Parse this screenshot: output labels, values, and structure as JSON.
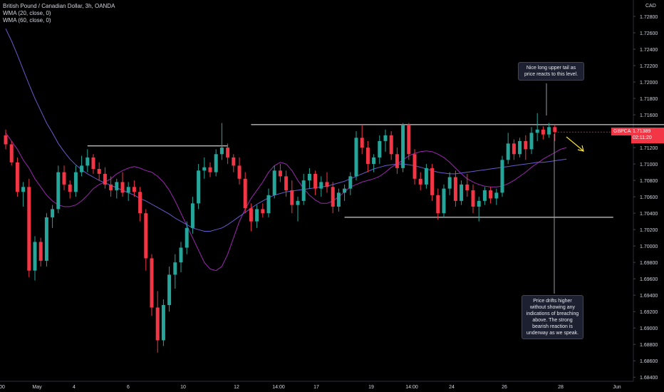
{
  "header": {
    "symbol_title": "British Pound / Canadian Dollar, 3h, OANDA",
    "indicator_1": "WMA (20, close, 0)",
    "indicator_2": "WMA (60, close, 0)"
  },
  "price_axis": {
    "currency": "CAD",
    "symbol_label": "GBPCAD",
    "current_price": "1.71389",
    "countdown": "02:11:20"
  },
  "annotations": {
    "top_note": "Nice long upper tail as price reacts to this level.",
    "bottom_note": "Price drifts higher without showing any indications of breaching above. The strong bearish reaction is underway as we speak."
  },
  "colors": {
    "background": "#000000",
    "bull": "#26a69a",
    "bear": "#f23645",
    "wma20": "#9c27b0",
    "wma60": "#6a5acd",
    "level_line": "#ffffff",
    "arrow": "#f7e03a"
  },
  "chart_data": {
    "type": "candlestick",
    "title": "British Pound / Canadian Dollar, 3h, OANDA",
    "y_ticks": [
      "1.72800",
      "1.72600",
      "1.72400",
      "1.72200",
      "1.72000",
      "1.71800",
      "1.71600",
      "1.71400",
      "1.71200",
      "1.71000",
      "1.70800",
      "1.70600",
      "1.70400",
      "1.70200",
      "1.70000",
      "1.69800",
      "1.69600",
      "1.69400",
      "1.69200",
      "1.69000",
      "1.68800",
      "1.68600",
      "1.68400"
    ],
    "x_ticks": [
      "00",
      "May",
      "4",
      "6",
      "10",
      "12",
      "14:00",
      "17",
      "19",
      "14:00",
      "24",
      "26",
      "28",
      "Jun"
    ],
    "ylim": [
      1.6835,
      1.73
    ],
    "horizontal_levels": [
      {
        "price": 1.7122,
        "from": 14,
        "to": 38
      },
      {
        "price": 1.7148,
        "from": 42,
        "to": 125
      },
      {
        "price": 1.7035,
        "from": 58,
        "to": 104
      }
    ],
    "series": [
      {
        "name": "WMA (20, close, 0)",
        "values": [
          1.7138,
          1.7128,
          1.7118,
          1.7105,
          1.7095,
          1.7082,
          1.7072,
          1.7062,
          1.7055,
          1.705,
          1.7048,
          1.7048,
          1.705,
          1.7055,
          1.7062,
          1.707,
          1.7075,
          1.7078,
          1.7082,
          1.7088,
          1.7092,
          1.7095,
          1.7097,
          1.7095,
          1.7092,
          1.709,
          1.7085,
          1.7078,
          1.7068,
          1.7055,
          1.704,
          1.7025,
          1.701,
          1.6995,
          1.698,
          1.6972,
          1.697,
          1.6975,
          1.699,
          1.701,
          1.703,
          1.7045,
          1.7058,
          1.7068,
          1.7078,
          1.709,
          1.7098,
          1.7102,
          1.71,
          1.7092,
          1.708,
          1.707,
          1.7062,
          1.7056,
          1.7052,
          1.7052,
          1.7055,
          1.706,
          1.7066,
          1.7072,
          1.7075,
          1.7078,
          1.708,
          1.7082,
          1.7085,
          1.709,
          1.7096,
          1.71,
          1.7105,
          1.711,
          1.7113,
          1.7115,
          1.7116,
          1.7115,
          1.7112,
          1.7108,
          1.7102,
          1.7095,
          1.7088,
          1.7082,
          1.7078,
          1.7075,
          1.7073,
          1.7072,
          1.7072,
          1.7073,
          1.7076,
          1.708,
          1.7085,
          1.709,
          1.7096,
          1.7101,
          1.7106,
          1.711,
          1.7114,
          1.7118,
          1.712
        ]
      },
      {
        "name": "WMA (60, close, 0)",
        "values": [
          1.7265,
          1.725,
          1.7233,
          1.7215,
          1.7197,
          1.718,
          1.7165,
          1.715,
          1.7138,
          1.7125,
          1.7115,
          1.7106,
          1.7099,
          1.7093,
          1.7088,
          1.7084,
          1.708,
          1.7077,
          1.7074,
          1.7071,
          1.7068,
          1.7065,
          1.7062,
          1.7058,
          1.7055,
          1.7051,
          1.7047,
          1.7043,
          1.7039,
          1.7034,
          1.703,
          1.7026,
          1.7022,
          1.702,
          1.7018,
          1.7018,
          1.702,
          1.7022,
          1.7026,
          1.7031,
          1.7036,
          1.7041,
          1.7046,
          1.7051,
          1.7055,
          1.7059,
          1.7062,
          1.7064,
          1.7066,
          1.7067,
          1.7068,
          1.7069,
          1.707,
          1.7071,
          1.7072,
          1.7073,
          1.7075,
          1.7077,
          1.7079,
          1.7082,
          1.7085,
          1.7088,
          1.7091,
          1.7094,
          1.7096,
          1.7098,
          1.7099,
          1.71,
          1.71,
          1.7099,
          1.7098,
          1.7096,
          1.7094,
          1.7092,
          1.709,
          1.7089,
          1.7088,
          1.7088,
          1.7089,
          1.709,
          1.7091,
          1.7092,
          1.7093,
          1.7094,
          1.7095,
          1.7096,
          1.7097,
          1.7098,
          1.7099,
          1.71,
          1.7101,
          1.7102,
          1.7102,
          1.7103,
          1.7104,
          1.7105,
          1.7106
        ]
      }
    ],
    "candles": [
      [
        1.7135,
        1.7142,
        1.7118,
        1.7124
      ],
      [
        1.7124,
        1.7128,
        1.7098,
        1.7102
      ],
      [
        1.7102,
        1.7108,
        1.706,
        1.7066
      ],
      [
        1.7066,
        1.7078,
        1.7048,
        1.7072
      ],
      [
        1.7072,
        1.7082,
        1.6962,
        1.697
      ],
      [
        1.697,
        1.7012,
        1.6958,
        1.7005
      ],
      [
        1.7005,
        1.701,
        1.6975,
        1.6982
      ],
      [
        1.6982,
        1.704,
        1.6975,
        1.7035
      ],
      [
        1.7035,
        1.705,
        1.7022,
        1.7045
      ],
      [
        1.7045,
        1.7098,
        1.704,
        1.709
      ],
      [
        1.709,
        1.7098,
        1.7068,
        1.7075
      ],
      [
        1.7075,
        1.708,
        1.7058,
        1.7066
      ],
      [
        1.7066,
        1.7098,
        1.706,
        1.709
      ],
      [
        1.709,
        1.711,
        1.7085,
        1.7098
      ],
      [
        1.7098,
        1.7118,
        1.709,
        1.7108
      ],
      [
        1.7108,
        1.7112,
        1.7088,
        1.7094
      ],
      [
        1.7094,
        1.7102,
        1.708,
        1.7088
      ],
      [
        1.7088,
        1.7096,
        1.707,
        1.7075
      ],
      [
        1.7075,
        1.7085,
        1.706,
        1.7068
      ],
      [
        1.7068,
        1.7082,
        1.7058,
        1.7078
      ],
      [
        1.7078,
        1.709,
        1.706,
        1.7065
      ],
      [
        1.7065,
        1.7078,
        1.7055,
        1.7072
      ],
      [
        1.7072,
        1.708,
        1.706,
        1.7066
      ],
      [
        1.7066,
        1.7072,
        1.703,
        1.704
      ],
      [
        1.704,
        1.7045,
        1.697,
        1.6985
      ],
      [
        1.6985,
        1.699,
        1.6915,
        1.6925
      ],
      [
        1.6925,
        1.6945,
        1.687,
        1.6885
      ],
      [
        1.6885,
        1.6935,
        1.6878,
        1.6928
      ],
      [
        1.6928,
        1.6975,
        1.692,
        1.6965
      ],
      [
        1.6965,
        1.699,
        1.6948,
        1.698
      ],
      [
        1.698,
        1.7005,
        1.6968,
        1.6998
      ],
      [
        1.6998,
        1.703,
        1.699,
        1.7022
      ],
      [
        1.7022,
        1.706,
        1.7015,
        1.7052
      ],
      [
        1.7052,
        1.71,
        1.7045,
        1.7092
      ],
      [
        1.7092,
        1.7108,
        1.7082,
        1.7096
      ],
      [
        1.7096,
        1.7102,
        1.7084,
        1.709
      ],
      [
        1.709,
        1.7118,
        1.7085,
        1.7112
      ],
      [
        1.7112,
        1.715,
        1.7105,
        1.712
      ],
      [
        1.712,
        1.7125,
        1.71,
        1.7108
      ],
      [
        1.7108,
        1.7112,
        1.709,
        1.7098
      ],
      [
        1.7098,
        1.7108,
        1.7075,
        1.7082
      ],
      [
        1.7082,
        1.709,
        1.704,
        1.7046
      ],
      [
        1.7046,
        1.7052,
        1.7018,
        1.703
      ],
      [
        1.703,
        1.705,
        1.7022,
        1.7045
      ],
      [
        1.7045,
        1.7052,
        1.7035,
        1.704
      ],
      [
        1.704,
        1.707,
        1.7035,
        1.7062
      ],
      [
        1.7062,
        1.7098,
        1.7058,
        1.7092
      ],
      [
        1.7092,
        1.71,
        1.7078,
        1.7085
      ],
      [
        1.7085,
        1.7092,
        1.706,
        1.7068
      ],
      [
        1.7068,
        1.708,
        1.704,
        1.705
      ],
      [
        1.705,
        1.706,
        1.703,
        1.7055
      ],
      [
        1.7055,
        1.7088,
        1.705,
        1.708
      ],
      [
        1.708,
        1.7095,
        1.707,
        1.7088
      ],
      [
        1.7088,
        1.7092,
        1.7062,
        1.707
      ],
      [
        1.707,
        1.7085,
        1.706,
        1.7078
      ],
      [
        1.7078,
        1.709,
        1.7065,
        1.7072
      ],
      [
        1.7072,
        1.7078,
        1.704,
        1.7048
      ],
      [
        1.7048,
        1.707,
        1.7042,
        1.7065
      ],
      [
        1.7065,
        1.7075,
        1.7055,
        1.707
      ],
      [
        1.707,
        1.709,
        1.7062,
        1.7085
      ],
      [
        1.7085,
        1.714,
        1.708,
        1.7132
      ],
      [
        1.7132,
        1.7148,
        1.7112,
        1.712
      ],
      [
        1.712,
        1.7128,
        1.709,
        1.71
      ],
      [
        1.71,
        1.7112,
        1.709,
        1.7108
      ],
      [
        1.7108,
        1.7135,
        1.71,
        1.7128
      ],
      [
        1.7128,
        1.7142,
        1.7115,
        1.7135
      ],
      [
        1.7135,
        1.714,
        1.7105,
        1.7112
      ],
      [
        1.7112,
        1.712,
        1.7088,
        1.7095
      ],
      [
        1.7095,
        1.715,
        1.709,
        1.7148
      ],
      [
        1.7148,
        1.715,
        1.7105,
        1.7112
      ],
      [
        1.7112,
        1.7118,
        1.7075,
        1.7082
      ],
      [
        1.7082,
        1.709,
        1.7068,
        1.7075
      ],
      [
        1.7075,
        1.71,
        1.707,
        1.7095
      ],
      [
        1.7095,
        1.71,
        1.7055,
        1.7062
      ],
      [
        1.7062,
        1.707,
        1.7032,
        1.704
      ],
      [
        1.704,
        1.7075,
        1.7035,
        1.707
      ],
      [
        1.707,
        1.709,
        1.7062,
        1.7084
      ],
      [
        1.7084,
        1.7092,
        1.7048,
        1.7055
      ],
      [
        1.7055,
        1.708,
        1.705,
        1.7075
      ],
      [
        1.7075,
        1.7088,
        1.706,
        1.7068
      ],
      [
        1.7068,
        1.7075,
        1.704,
        1.7048
      ],
      [
        1.7048,
        1.706,
        1.703,
        1.7055
      ],
      [
        1.7055,
        1.7072,
        1.705,
        1.7068
      ],
      [
        1.7068,
        1.7072,
        1.7052,
        1.7058
      ],
      [
        1.7058,
        1.707,
        1.705,
        1.7065
      ],
      [
        1.7065,
        1.711,
        1.706,
        1.7105
      ],
      [
        1.7105,
        1.7138,
        1.71,
        1.7125
      ],
      [
        1.7125,
        1.713,
        1.7105,
        1.7112
      ],
      [
        1.7112,
        1.7132,
        1.7108,
        1.7128
      ],
      [
        1.7128,
        1.7135,
        1.7105,
        1.7118
      ],
      [
        1.7118,
        1.7145,
        1.7112,
        1.7138
      ],
      [
        1.7138,
        1.7162,
        1.7128,
        1.7142
      ],
      [
        1.7142,
        1.7146,
        1.713,
        1.7136
      ],
      [
        1.7136,
        1.715,
        1.7132,
        1.7145
      ],
      [
        1.7145,
        1.7148,
        1.7128,
        1.7139
      ]
    ]
  }
}
